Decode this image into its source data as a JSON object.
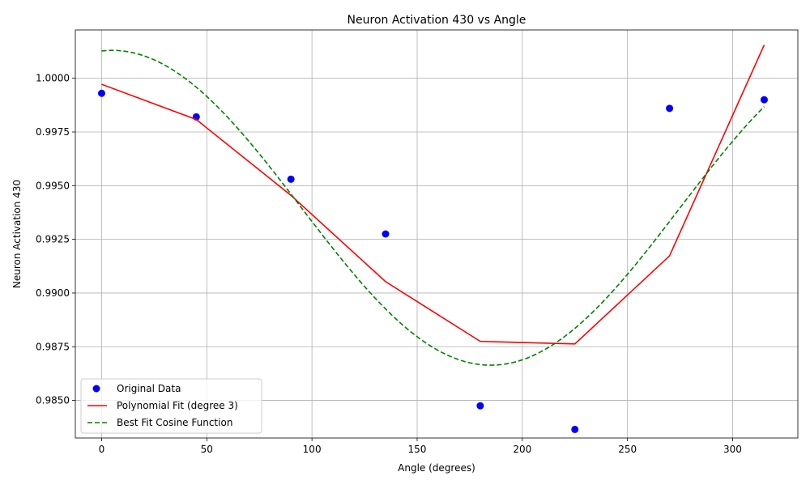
{
  "chart_data": {
    "type": "scatter",
    "title": "Neuron Activation 430 vs Angle",
    "xlabel": "Angle (degrees)",
    "ylabel": "Neuron Activation 430",
    "xlim": [
      -12.5,
      331
    ],
    "ylim": [
      0.98325,
      1.00225
    ],
    "xticks": [
      0,
      50,
      100,
      150,
      200,
      250,
      300
    ],
    "yticks": [
      0.985,
      0.9875,
      0.99,
      0.9925,
      0.995,
      0.9975,
      1.0
    ],
    "ytick_labels": [
      "0.9850",
      "0.9875",
      "0.9900",
      "0.9925",
      "0.9950",
      "0.9975",
      "1.0000"
    ],
    "grid": true,
    "legend_position": "lower-left",
    "series": [
      {
        "name": "Original Data",
        "kind": "scatter",
        "color": "#0000ff",
        "x": [
          0,
          45,
          90,
          135,
          180,
          225,
          270,
          315
        ],
        "y": [
          0.9993,
          0.9982,
          0.9953,
          0.99275,
          0.98475,
          0.98365,
          0.9986,
          0.999
        ]
      },
      {
        "name": "Polynomial Fit (degree 3)",
        "kind": "line",
        "color": "#ff0000",
        "x": [
          0,
          45,
          90,
          135,
          180,
          225,
          270,
          315
        ],
        "y": [
          0.99972,
          0.99808,
          0.99455,
          0.99053,
          0.98775,
          0.98763,
          0.99173,
          1.00155
        ]
      },
      {
        "name": "Best Fit Cosine Function",
        "kind": "dashed-line",
        "color": "#008000",
        "function": "offset + amplitude * cos((angle - phase) * pi / 180)",
        "offset": 0.99397,
        "amplitude": 0.00733,
        "phase": 5,
        "x_range": [
          0,
          315
        ]
      }
    ]
  }
}
